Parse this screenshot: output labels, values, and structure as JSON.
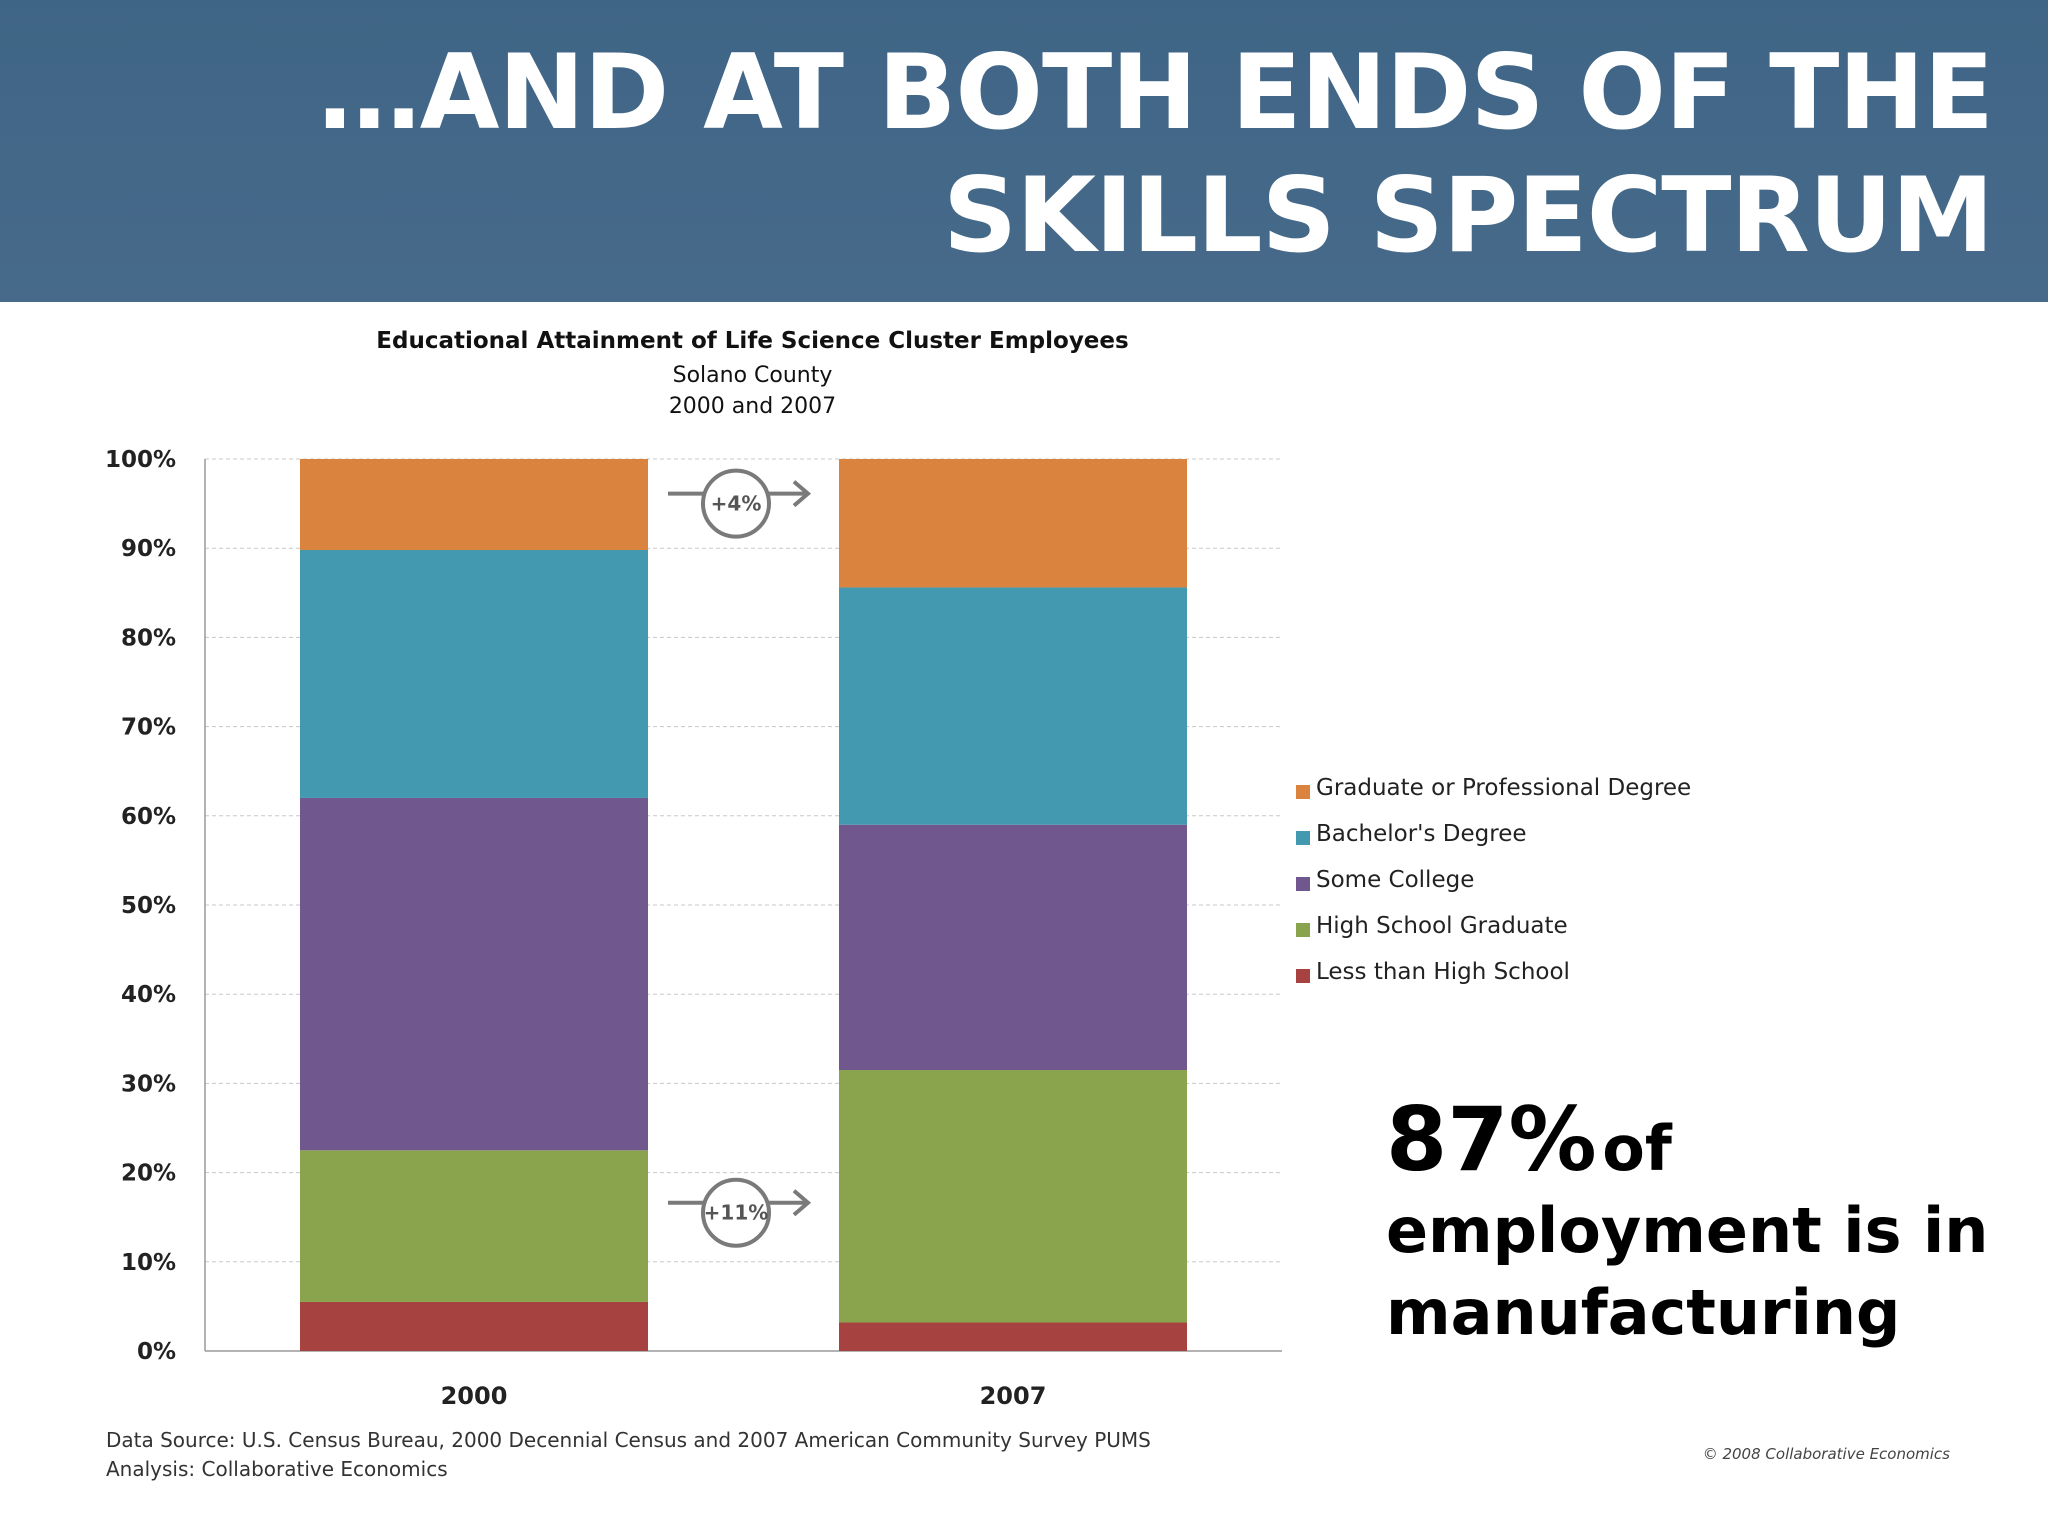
{
  "header": {
    "title": "…AND AT BOTH ENDS OF THE SKILLS SPECTRUM"
  },
  "chart_data": {
    "type": "bar",
    "stacked": true,
    "title": "Educational Attainment of Life Science Cluster Employees",
    "subtitle": [
      "Solano County",
      "2000 and 2007"
    ],
    "categories": [
      "2000",
      "2007"
    ],
    "y_ticks": [
      "0%",
      "10%",
      "20%",
      "30%",
      "40%",
      "50%",
      "60%",
      "70%",
      "80%",
      "90%",
      "100%"
    ],
    "ylim": [
      0,
      100
    ],
    "grid": true,
    "legend_position": "right",
    "series": [
      {
        "name": "Less than High School",
        "color": "#a6423f",
        "values": [
          5.5,
          3.2
        ]
      },
      {
        "name": "High School Graduate",
        "color": "#8aa44e",
        "values": [
          17.0,
          28.3
        ]
      },
      {
        "name": "Some College",
        "color": "#70588e",
        "values": [
          39.5,
          27.5
        ]
      },
      {
        "name": "Bachelor's Degree",
        "color": "#4399af",
        "values": [
          27.8,
          26.6
        ]
      },
      {
        "name": "Graduate or Professional Degree",
        "color": "#d9833e",
        "values": [
          10.2,
          14.4
        ]
      }
    ],
    "annotations": [
      {
        "text": "+4%",
        "level": 95
      },
      {
        "text": "+11%",
        "level": 15.5
      }
    ]
  },
  "callout": {
    "pct": "87%",
    "of": "of",
    "line2": "employment is in",
    "line3": "manufacturing"
  },
  "source": {
    "line1": "Data Source: U.S. Census Bureau, 2000 Decennial Census and 2007 American Community Survey PUMS",
    "line2": "Analysis: Collaborative Economics"
  },
  "copyright": "© 2008 Collaborative Economics"
}
